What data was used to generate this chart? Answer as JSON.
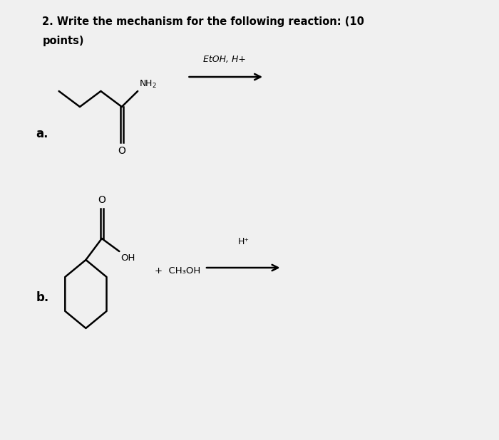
{
  "title_line1": "2. Write the mechanism for the following reaction: (10",
  "title_line2": "points)",
  "bg_color": "#f0f0f0",
  "inner_bg": "#ffffff",
  "text_color": "#000000",
  "label_a": "a.",
  "label_b": "b.",
  "reaction_a_condition": "EtOH, H+",
  "reaction_b_condition1": "+  CH₃OH",
  "reaction_b_condition2": "H⁺",
  "figsize": [
    7.0,
    6.18
  ],
  "dpi": 100
}
